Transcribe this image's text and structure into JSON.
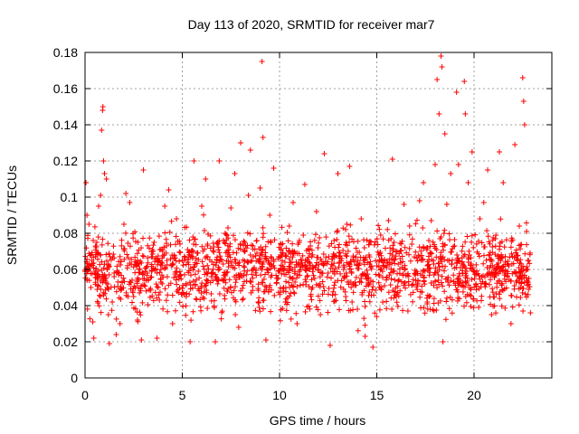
{
  "chart_data": {
    "type": "scatter",
    "title": "Day 113 of 2020, SRMTID for receiver mar7",
    "xlabel": "GPS time / hours",
    "ylabel": "SRMTID / TECUs",
    "xlim": [
      0,
      24
    ],
    "ylim": [
      0,
      0.18
    ],
    "x_ticks": [
      0,
      5,
      10,
      15,
      20
    ],
    "x_tick_labels": [
      "0",
      "5",
      "10",
      "15",
      "20"
    ],
    "y_ticks": [
      0,
      0.02,
      0.04,
      0.06,
      0.08,
      0.1,
      0.12,
      0.14,
      0.16,
      0.18
    ],
    "y_tick_labels": [
      "0",
      "0.02",
      "0.04",
      "0.06",
      "0.08",
      "0.1",
      "0.12",
      "0.14",
      "0.16",
      "0.18"
    ],
    "grid": true,
    "marker": "+",
    "marker_color": "#ff0000",
    "series": [
      {
        "name": "SRMTID",
        "points": [
          [
            0.05,
            0.108
          ],
          [
            0.1,
            0.09
          ],
          [
            0.2,
            0.085
          ],
          [
            0.3,
            0.05
          ],
          [
            0.4,
            0.031
          ],
          [
            0.45,
            0.022
          ],
          [
            0.5,
            0.058
          ],
          [
            0.6,
            0.075
          ],
          [
            0.7,
            0.095
          ],
          [
            0.8,
            0.101
          ],
          [
            0.85,
            0.137
          ],
          [
            0.9,
            0.148
          ],
          [
            0.92,
            0.15
          ],
          [
            0.95,
            0.12
          ],
          [
            1.0,
            0.113
          ],
          [
            1.1,
            0.11
          ],
          [
            1.2,
            0.035
          ],
          [
            1.25,
            0.019
          ],
          [
            1.4,
            0.042
          ],
          [
            1.6,
            0.024
          ],
          [
            1.8,
            0.03
          ],
          [
            2.0,
            0.085
          ],
          [
            2.1,
            0.102
          ],
          [
            2.3,
            0.097
          ],
          [
            2.5,
            0.045
          ],
          [
            2.7,
            0.032
          ],
          [
            2.9,
            0.021
          ],
          [
            3.0,
            0.115
          ],
          [
            3.2,
            0.058
          ],
          [
            3.5,
            0.07
          ],
          [
            3.7,
            0.022
          ],
          [
            3.9,
            0.06
          ],
          [
            4.1,
            0.095
          ],
          [
            4.3,
            0.104
          ],
          [
            4.5,
            0.03
          ],
          [
            4.7,
            0.088
          ],
          [
            5.0,
            0.065
          ],
          [
            5.2,
            0.045
          ],
          [
            5.4,
            0.02
          ],
          [
            5.6,
            0.12
          ],
          [
            5.8,
            0.069
          ],
          [
            6.0,
            0.095
          ],
          [
            6.2,
            0.11
          ],
          [
            6.5,
            0.056
          ],
          [
            6.7,
            0.02
          ],
          [
            6.9,
            0.12
          ],
          [
            7.1,
            0.063
          ],
          [
            7.3,
            0.048
          ],
          [
            7.5,
            0.094
          ],
          [
            7.7,
            0.113
          ],
          [
            7.9,
            0.028
          ],
          [
            8.0,
            0.13
          ],
          [
            8.2,
            0.075
          ],
          [
            8.4,
            0.101
          ],
          [
            8.5,
            0.126
          ],
          [
            8.7,
            0.061
          ],
          [
            8.9,
            0.042
          ],
          [
            9.0,
            0.105
          ],
          [
            9.1,
            0.175
          ],
          [
            9.15,
            0.133
          ],
          [
            9.3,
            0.021
          ],
          [
            9.5,
            0.09
          ],
          [
            9.7,
            0.116
          ],
          [
            9.9,
            0.055
          ],
          [
            10.1,
            0.068
          ],
          [
            10.3,
            0.042
          ],
          [
            10.5,
            0.084
          ],
          [
            10.7,
            0.097
          ],
          [
            10.9,
            0.03
          ],
          [
            11.1,
            0.062
          ],
          [
            11.3,
            0.107
          ],
          [
            11.5,
            0.071
          ],
          [
            11.7,
            0.05
          ],
          [
            11.9,
            0.092
          ],
          [
            12.1,
            0.035
          ],
          [
            12.3,
            0.124
          ],
          [
            12.5,
            0.058
          ],
          [
            12.6,
            0.018
          ],
          [
            12.8,
            0.076
          ],
          [
            13.0,
            0.113
          ],
          [
            13.2,
            0.066
          ],
          [
            13.4,
            0.045
          ],
          [
            13.6,
            0.117
          ],
          [
            13.8,
            0.052
          ],
          [
            14.0,
            0.038
          ],
          [
            14.2,
            0.088
          ],
          [
            14.4,
            0.023
          ],
          [
            14.6,
            0.068
          ],
          [
            14.8,
            0.017
          ],
          [
            15.0,
            0.062
          ],
          [
            15.2,
            0.079
          ],
          [
            15.4,
            0.051
          ],
          [
            15.6,
            0.087
          ],
          [
            15.8,
            0.121
          ],
          [
            16.0,
            0.045
          ],
          [
            16.2,
            0.066
          ],
          [
            16.4,
            0.096
          ],
          [
            16.6,
            0.037
          ],
          [
            16.8,
            0.074
          ],
          [
            17.0,
            0.058
          ],
          [
            17.2,
            0.098
          ],
          [
            17.4,
            0.108
          ],
          [
            17.6,
            0.042
          ],
          [
            17.8,
            0.087
          ],
          [
            18.0,
            0.118
          ],
          [
            18.1,
            0.165
          ],
          [
            18.2,
            0.146
          ],
          [
            18.3,
            0.178
          ],
          [
            18.35,
            0.172
          ],
          [
            18.4,
            0.02
          ],
          [
            18.5,
            0.135
          ],
          [
            18.6,
            0.096
          ],
          [
            18.8,
            0.113
          ],
          [
            19.0,
            0.073
          ],
          [
            19.1,
            0.158
          ],
          [
            19.2,
            0.118
          ],
          [
            19.3,
            0.061
          ],
          [
            19.5,
            0.164
          ],
          [
            19.55,
            0.146
          ],
          [
            19.7,
            0.108
          ],
          [
            19.9,
            0.125
          ],
          [
            20.1,
            0.052
          ],
          [
            20.3,
            0.088
          ],
          [
            20.5,
            0.097
          ],
          [
            20.7,
            0.115
          ],
          [
            20.9,
            0.035
          ],
          [
            21.1,
            0.077
          ],
          [
            21.3,
            0.125
          ],
          [
            21.5,
            0.108
          ],
          [
            21.7,
            0.056
          ],
          [
            21.9,
            0.03
          ],
          [
            22.1,
            0.129
          ],
          [
            22.3,
            0.061
          ],
          [
            22.5,
            0.166
          ],
          [
            22.55,
            0.153
          ],
          [
            22.6,
            0.14
          ],
          [
            22.7,
            0.081
          ],
          [
            22.8,
            0.049
          ],
          [
            22.9,
            0.036
          ]
        ]
      }
    ],
    "density_note_visible": false,
    "dense_scatter": {
      "x_range": [
        0,
        22.9
      ],
      "y_center": 0.06,
      "y_spread": 0.045,
      "count": 1800
    }
  }
}
